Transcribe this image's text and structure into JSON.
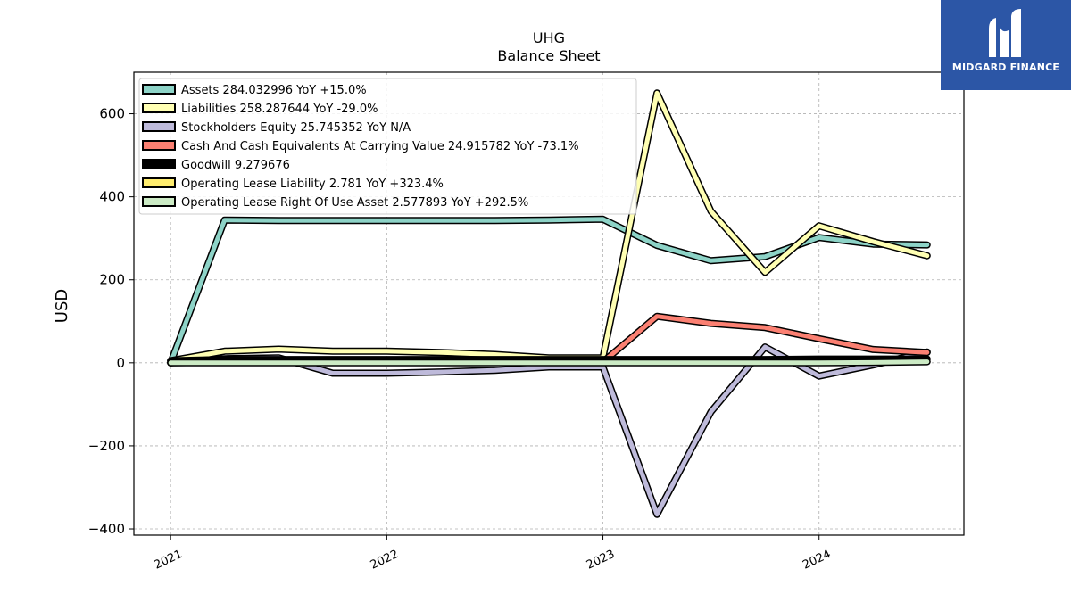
{
  "chart_data": {
    "type": "line",
    "title": "UHG",
    "subtitle": "Balance  Sheet",
    "ylabel": "USD",
    "xlabel": "",
    "ylim": [
      -415,
      700
    ],
    "xlim": [
      2020.83,
      2024.67
    ],
    "yticks": [
      -400,
      -200,
      0,
      200,
      400,
      600
    ],
    "ytick_labels": [
      "−400",
      "−200",
      "0",
      "200",
      "400",
      "600"
    ],
    "xticks": [
      2021,
      2022,
      2023,
      2024
    ],
    "xtick_labels": [
      "2021",
      "2022",
      "2023",
      "2024"
    ],
    "grid": true,
    "legend_position": "top-left",
    "x": [
      2021.0,
      2021.25,
      2021.5,
      2021.75,
      2022.0,
      2022.25,
      2022.5,
      2022.75,
      2023.0,
      2023.25,
      2023.5,
      2023.75,
      2024.0,
      2024.25,
      2024.5
    ],
    "series": [
      {
        "name": "Assets",
        "legend": "Assets  284.032996 YoY +15.0%",
        "color": "#8dd3c7",
        "values": [
          0,
          344,
          343,
          343,
          343,
          343,
          343,
          344,
          346,
          283,
          246,
          256,
          302,
          286,
          284
        ]
      },
      {
        "name": "Liabilities",
        "legend": "Liabilities  258.287644 YoY -29.0%",
        "color": "#ffffb3",
        "values": [
          5,
          28,
          33,
          28,
          28,
          25,
          20,
          12,
          12,
          650,
          365,
          218,
          330,
          292,
          258
        ]
      },
      {
        "name": "Stockholders Equity",
        "legend": "Stockholders Equity  25.745352 YoY N/A",
        "color": "#bebada",
        "values": [
          0,
          10,
          12,
          -25,
          -25,
          -22,
          -18,
          -10,
          -10,
          -365,
          -118,
          38,
          -32,
          -5,
          26
        ]
      },
      {
        "name": "Cash And Cash Equivalents At Carrying Value",
        "legend": "Cash And Cash Equivalents At Carrying Value  24.915782 YoY -73.1%",
        "color": "#fb8072",
        "values": [
          0,
          2,
          2,
          2,
          2,
          2,
          2,
          2,
          2,
          112,
          95,
          85,
          58,
          32,
          25
        ]
      },
      {
        "name": "Goodwill",
        "legend": "Goodwill  9.279676",
        "color": "#000000",
        "values": [
          5,
          8,
          8,
          8,
          8,
          8,
          8,
          8,
          8,
          8,
          8,
          8,
          9,
          9,
          9
        ]
      },
      {
        "name": "Operating Lease Liability",
        "legend": "Operating Lease Liability  2.781 YoY +323.4%",
        "color": "#ffed6f",
        "values": [
          null,
          null,
          null,
          null,
          null,
          null,
          null,
          null,
          null,
          null,
          null,
          null,
          null,
          null,
          null
        ]
      },
      {
        "name": "Operating Lease Right Of Use Asset",
        "legend": "Operating Lease Right Of Use Asset  2.577893 YoY +292.5%",
        "color": "#ccebc5",
        "values": [
          0,
          0,
          0,
          0,
          0,
          0,
          0,
          0,
          0,
          0,
          0,
          0,
          0,
          1,
          2.6
        ]
      }
    ]
  },
  "logo": {
    "text": "MIDGARD FINANCE",
    "bg_color": "#2c56a6"
  }
}
